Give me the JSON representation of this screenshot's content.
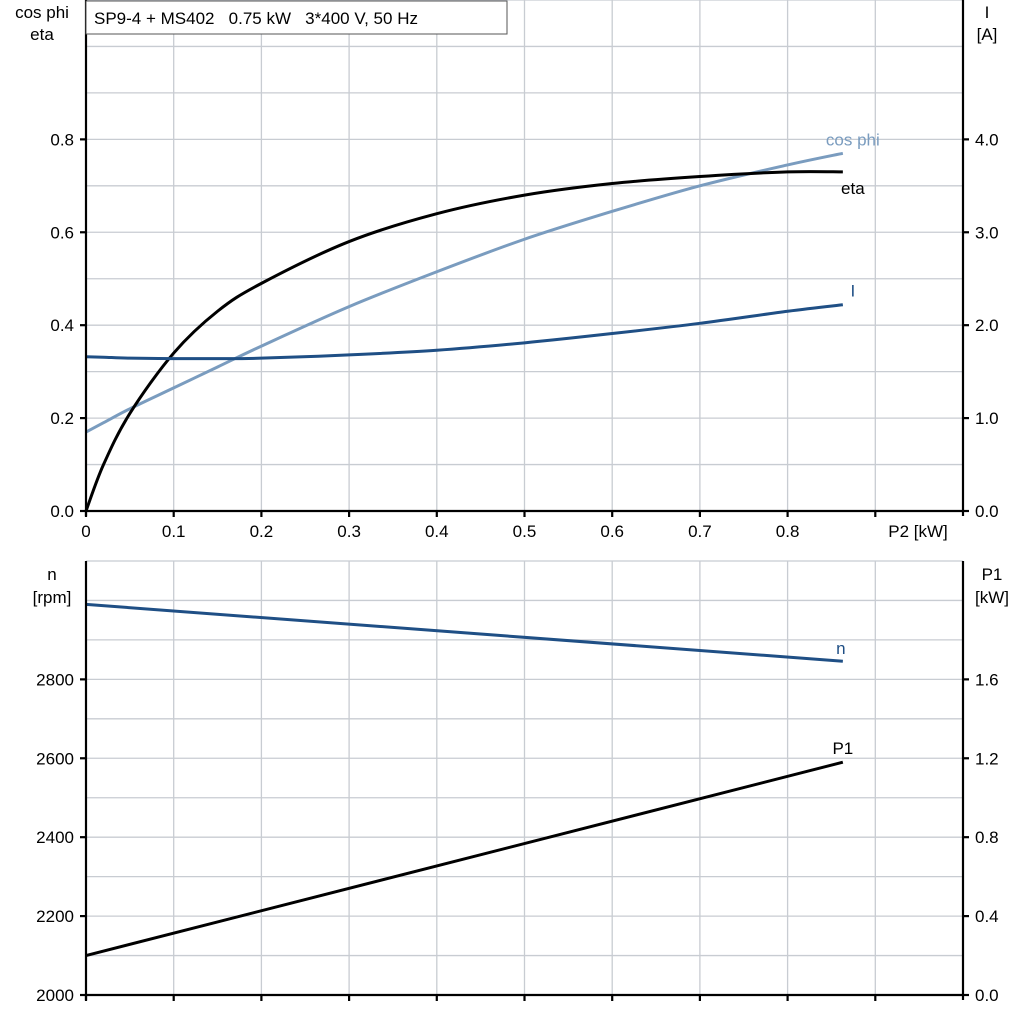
{
  "title": "SP9-4 + MS402   0.75 kW   3*400 V, 50 Hz",
  "chart_data": [
    {
      "type": "line",
      "xlabel": "P2 [kW]",
      "ylabel_left": [
        "cos phi",
        "eta"
      ],
      "ylabel_right": [
        "I",
        "[A]"
      ],
      "xlim": [
        0,
        1.0
      ],
      "ylim_left": [
        0,
        1.1
      ],
      "ylim_right": [
        0,
        5.5
      ],
      "x_ticks": [
        "0",
        "0.1",
        "0.2",
        "0.3",
        "0.4",
        "0.5",
        "0.6",
        "0.7",
        "0.8"
      ],
      "y_left_ticks": [
        "0.0",
        "0.2",
        "0.4",
        "0.6",
        "0.8"
      ],
      "y_right_ticks": [
        "0.0",
        "1.0",
        "2.0",
        "3.0",
        "4.0"
      ],
      "grid": true,
      "x": [
        0,
        0.02,
        0.05,
        0.1,
        0.15,
        0.2,
        0.3,
        0.4,
        0.5,
        0.6,
        0.7,
        0.8,
        0.863
      ],
      "series": [
        {
          "name": "cos phi",
          "axis": "left",
          "color": "#7a9cbf",
          "values": [
            0.17,
            0.19,
            0.22,
            0.265,
            0.31,
            0.355,
            0.44,
            0.515,
            0.585,
            0.645,
            0.7,
            0.745,
            0.77
          ]
        },
        {
          "name": "eta",
          "axis": "left",
          "color": "#000000",
          "values": [
            0.0,
            0.1,
            0.21,
            0.34,
            0.43,
            0.49,
            0.58,
            0.64,
            0.68,
            0.705,
            0.72,
            0.73,
            0.73
          ]
        },
        {
          "name": "I",
          "axis": "right",
          "color": "#1f4f85",
          "values": [
            1.66,
            1.655,
            1.645,
            1.64,
            1.64,
            1.645,
            1.68,
            1.73,
            1.81,
            1.91,
            2.02,
            2.15,
            2.22
          ]
        }
      ]
    },
    {
      "type": "line",
      "ylabel_left": [
        "n",
        "[rpm]"
      ],
      "ylabel_right": [
        "P1",
        "[kW]"
      ],
      "xlim": [
        0,
        1.0
      ],
      "ylim_left": [
        2000,
        3100
      ],
      "ylim_right": [
        0,
        2.2
      ],
      "y_left_ticks": [
        "2000",
        "2200",
        "2400",
        "2600",
        "2800"
      ],
      "y_right_ticks": [
        "0.0",
        "0.4",
        "0.8",
        "1.2",
        "1.6"
      ],
      "grid": true,
      "x": [
        0,
        0.863
      ],
      "series": [
        {
          "name": "n",
          "axis": "left",
          "color": "#1f4f85",
          "values": [
            2990,
            2846
          ]
        },
        {
          "name": "P1",
          "axis": "right",
          "color": "#000000",
          "values": [
            0.2,
            1.18
          ]
        }
      ]
    }
  ]
}
